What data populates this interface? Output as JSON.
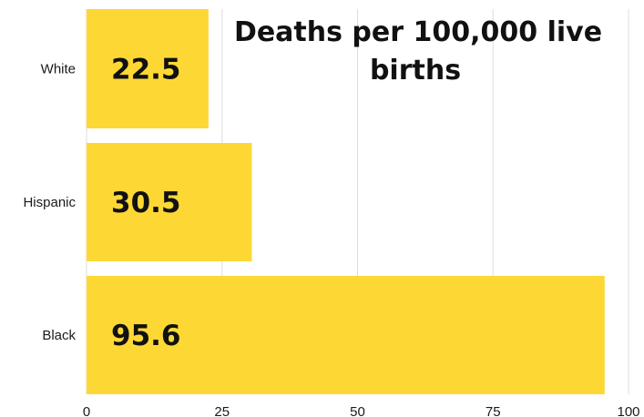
{
  "chart_data": {
    "type": "bar",
    "orientation": "horizontal",
    "title_lines": [
      "Deaths per 100,000 live",
      "births"
    ],
    "categories": [
      "White",
      "Hispanic",
      "Black"
    ],
    "values": [
      22.5,
      30.5,
      95.6
    ],
    "data_labels": [
      "22.5",
      "30.5",
      "95.6"
    ],
    "x_ticks": [
      "0",
      "25",
      "50",
      "75",
      "100"
    ],
    "xlim": [
      0,
      100
    ],
    "xlabel": "",
    "ylabel": "",
    "grid": "vertical",
    "bar_color": "#FDD835",
    "grid_color": "#dddddd"
  }
}
